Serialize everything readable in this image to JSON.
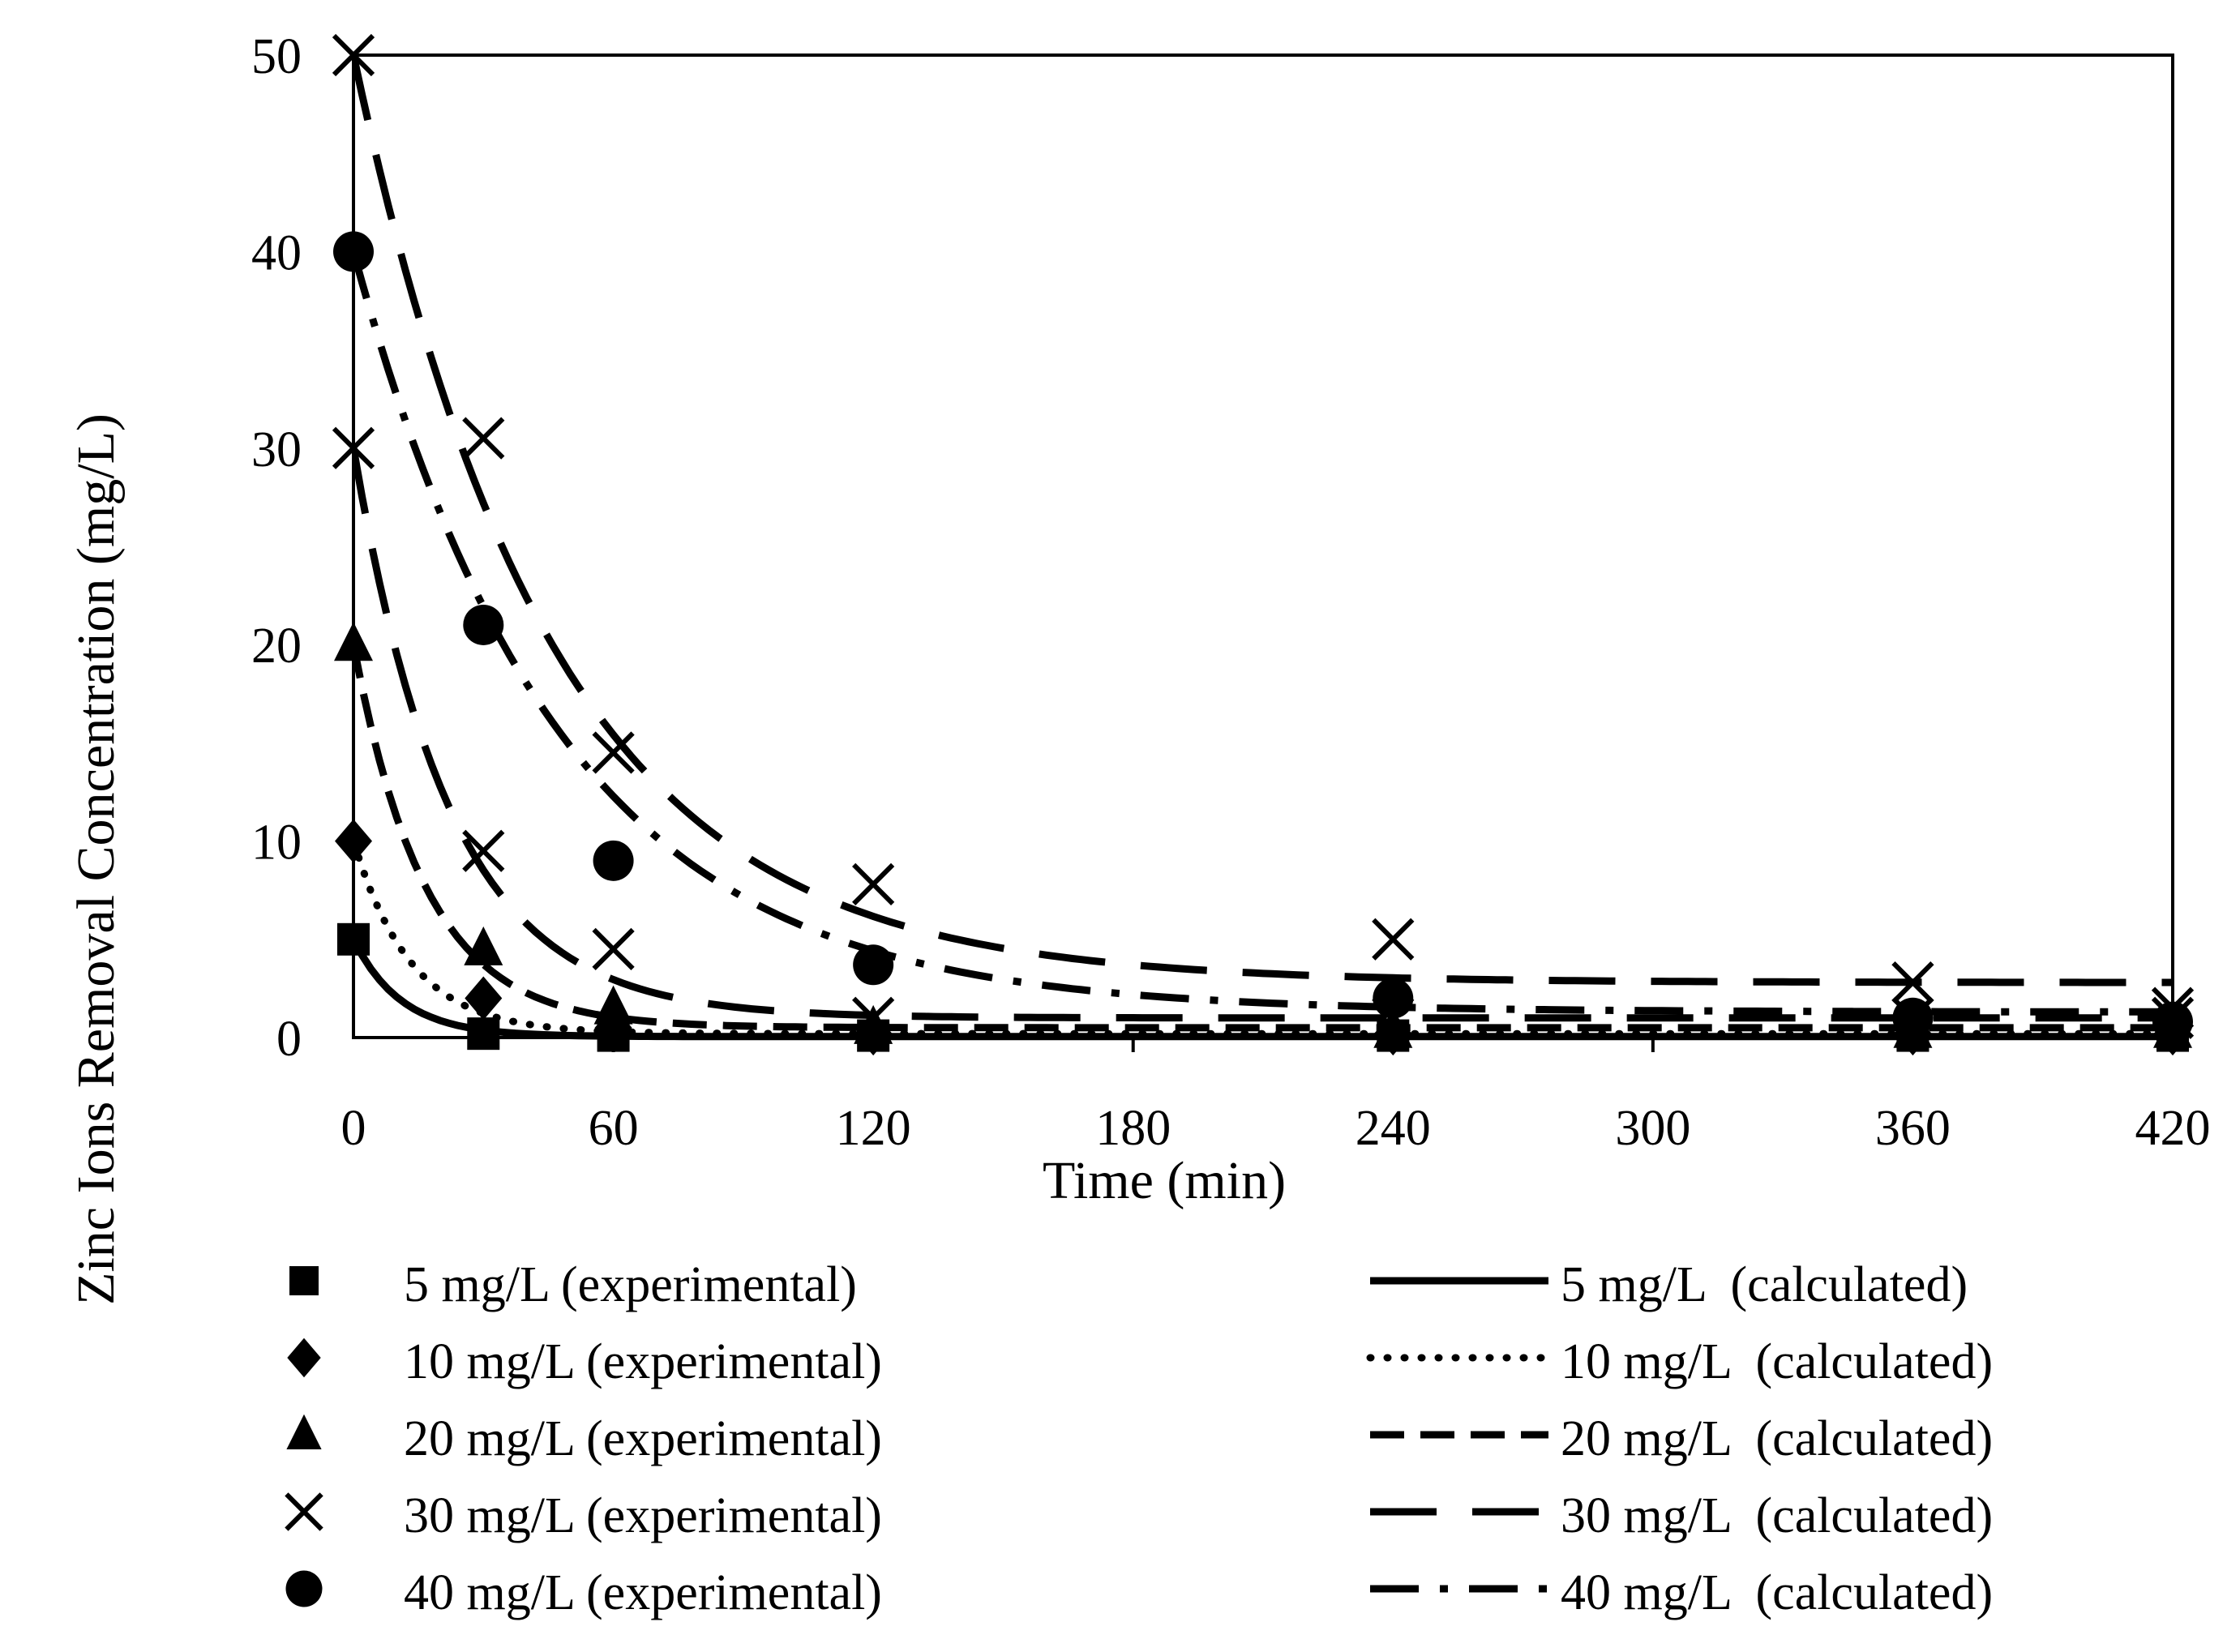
{
  "chart_data": {
    "type": "line",
    "title": "",
    "xlabel": "Time (min)",
    "ylabel": "Zinc Ions Removal Concentration (mg/L)",
    "xlim": [
      0,
      420
    ],
    "ylim": [
      0,
      50
    ],
    "xticks": [
      0,
      60,
      120,
      180,
      240,
      300,
      360,
      420
    ],
    "yticks": [
      0,
      10,
      20,
      30,
      40,
      50
    ],
    "grid": false,
    "legend_position": "bottom",
    "series": [
      {
        "name": "5 mg/L (experimental)",
        "kind": "scatter",
        "marker": "square",
        "x": [
          0,
          30,
          60,
          120,
          240,
          360,
          420
        ],
        "y": [
          5,
          0.2,
          0.1,
          0.1,
          0.1,
          0.1,
          0.1
        ]
      },
      {
        "name": "10 mg/L (experimental)",
        "kind": "scatter",
        "marker": "diamond",
        "x": [
          0,
          30,
          60,
          120,
          240,
          360,
          420
        ],
        "y": [
          10,
          2,
          0.5,
          0.2,
          0.2,
          0.2,
          0.2
        ]
      },
      {
        "name": "20 mg/L (experimental)",
        "kind": "scatter",
        "marker": "triangle",
        "x": [
          0,
          30,
          60,
          120,
          240,
          360,
          420
        ],
        "y": [
          20,
          4.5,
          1.5,
          0.5,
          0.3,
          0.3,
          0.3
        ]
      },
      {
        "name": "30 mg/L (experimental)",
        "kind": "scatter",
        "marker": "x",
        "x": [
          0,
          30,
          60,
          120,
          240,
          360,
          420
        ],
        "y": [
          30,
          9.5,
          4.5,
          1,
          1,
          1,
          1
        ]
      },
      {
        "name": "50 mg/L (experimental, unlabeled)",
        "kind": "scatter",
        "marker": "x",
        "legend": false,
        "x": [
          0,
          30,
          60,
          120,
          240,
          360,
          420
        ],
        "y": [
          50,
          30.5,
          14.5,
          7.8,
          5,
          2.8,
          1.5
        ]
      },
      {
        "name": "40 mg/L (experimental)",
        "kind": "scatter",
        "marker": "circle",
        "x": [
          0,
          30,
          60,
          120,
          240,
          360,
          420
        ],
        "y": [
          40,
          21,
          9,
          3.7,
          2,
          1,
          0.8
        ]
      },
      {
        "name": "5 mg/L  (calculated)",
        "kind": "line",
        "dash": "solid",
        "C0": 5,
        "k": 0.09,
        "Ce": 0.05
      },
      {
        "name": "10 mg/L  (calculated)",
        "kind": "line",
        "dash": "dotted",
        "C0": 10,
        "k": 0.075,
        "Ce": 0.2
      },
      {
        "name": "20 mg/L  (calculated)",
        "kind": "line",
        "dash": "dashed",
        "C0": 20,
        "k": 0.06,
        "Ce": 0.5
      },
      {
        "name": "30 mg/L  (calculated)",
        "kind": "line",
        "dash": "longdash",
        "C0": 30,
        "k": 0.045,
        "Ce": 1.0
      },
      {
        "name": "50 mg/L (calculated, unlabeled)",
        "kind": "line",
        "dash": "longdash",
        "legend": false,
        "C0": 50,
        "k": 0.022,
        "Ce": 2.8
      },
      {
        "name": "40 mg/L  (calculated)",
        "kind": "line",
        "dash": "dashdot",
        "C0": 40,
        "k": 0.021,
        "Ce": 1.3
      }
    ]
  }
}
